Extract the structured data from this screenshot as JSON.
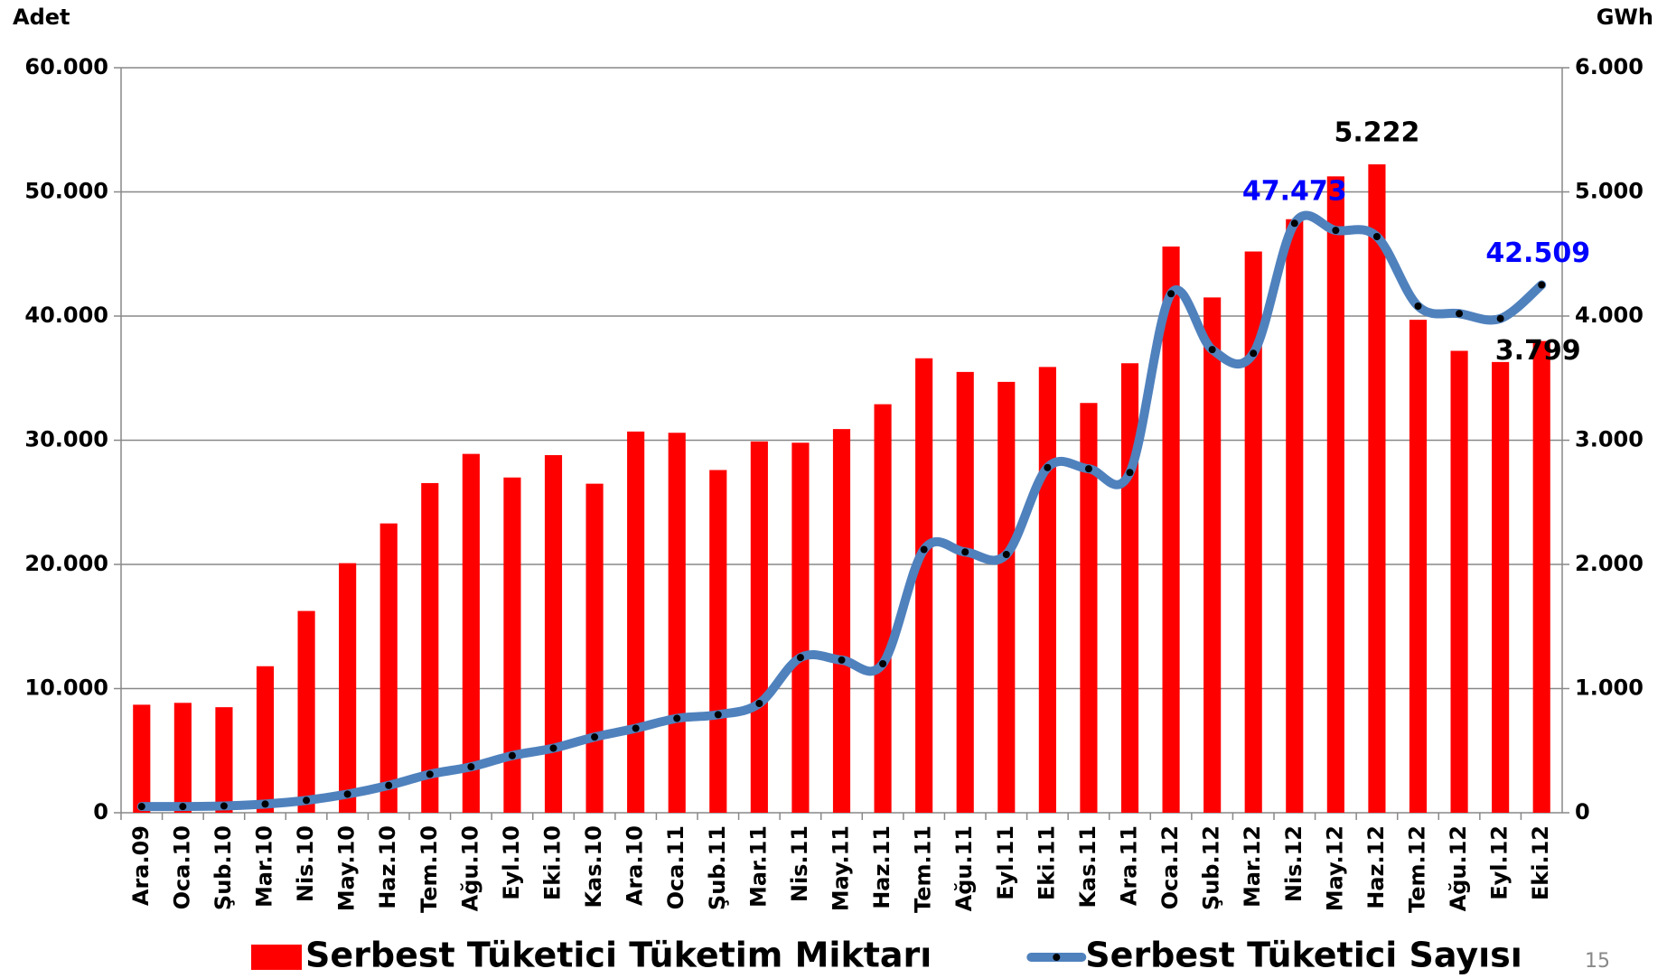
{
  "chart_data": {
    "type": "bar_line",
    "y_label": "Adet",
    "y2_label": "GWh",
    "categories": [
      "Ara.09",
      "Oca.10",
      "Şub.10",
      "Mar.10",
      "Nis.10",
      "May.10",
      "Haz.10",
      "Tem.10",
      "Ağu.10",
      "Eyl.10",
      "Eki.10",
      "Kas.10",
      "Ara.10",
      "Oca.11",
      "Şub.11",
      "Mar.11",
      "Nis.11",
      "May.11",
      "Haz.11",
      "Tem.11",
      "Ağu.11",
      "Eyl.11",
      "Eki.11",
      "Kas.11",
      "Ara.11",
      "Oca.12",
      "Şub.12",
      "Mar.12",
      "Nis.12",
      "May.12",
      "Haz.12",
      "Tem.12",
      "Ağu.12",
      "Eyl.12",
      "Eki.12"
    ],
    "series": [
      {
        "name": "Serbest Tüketici Tüketim Miktarı",
        "type": "bar",
        "axis": "y2",
        "color": "#ff0000",
        "values": [
          870,
          885,
          850,
          1180,
          1625,
          2010,
          2330,
          2655,
          2890,
          2700,
          2880,
          2650,
          3070,
          3060,
          2760,
          2990,
          2980,
          3090,
          3290,
          3660,
          3550,
          3470,
          3590,
          3300,
          3620,
          4560,
          4150,
          4520,
          4780,
          5125,
          5222,
          3970,
          3720,
          3630,
          3799
        ],
        "value_labels": [
          null,
          null,
          null,
          null,
          null,
          null,
          null,
          null,
          null,
          null,
          null,
          null,
          null,
          null,
          null,
          null,
          null,
          null,
          null,
          null,
          null,
          null,
          null,
          null,
          null,
          null,
          null,
          null,
          null,
          null,
          "5.222",
          null,
          null,
          null,
          "3.799"
        ],
        "label_color": "#000000"
      },
      {
        "name": "Serbest Tüketici Sayısı",
        "type": "line",
        "axis": "y",
        "color": "#4f81bd",
        "marker_color": "#000000",
        "values": [
          500,
          500,
          550,
          700,
          1000,
          1500,
          2200,
          3100,
          3700,
          4600,
          5200,
          6100,
          6800,
          7600,
          7900,
          8800,
          12500,
          12300,
          12000,
          21200,
          21000,
          20800,
          27800,
          27700,
          27400,
          41800,
          37300,
          37000,
          47473,
          46900,
          46400,
          40800,
          40200,
          39800,
          42509
        ],
        "value_labels": [
          null,
          null,
          null,
          null,
          null,
          null,
          null,
          null,
          null,
          null,
          null,
          null,
          null,
          null,
          null,
          null,
          null,
          null,
          null,
          null,
          null,
          null,
          null,
          null,
          null,
          null,
          null,
          null,
          "47.473",
          null,
          null,
          null,
          null,
          null,
          "42.509"
        ],
        "label_color": "#0000ff"
      }
    ],
    "ylim": [
      0,
      60000
    ],
    "yticks": [
      0,
      {
        "value": 10000,
        "label": "10.000"
      },
      {
        "value": 20000,
        "label": "20.000"
      },
      {
        "value": 30000,
        "label": "30.000"
      },
      {
        "value": 40000,
        "label": "40.000"
      },
      {
        "value": 50000,
        "label": "50.000"
      },
      {
        "value": 60000,
        "label": "60.000"
      }
    ],
    "y2lim": [
      0,
      6000
    ],
    "y2ticks": [
      0,
      {
        "value": 1000,
        "label": "1.000"
      },
      {
        "value": 2000,
        "label": "2.000"
      },
      {
        "value": 3000,
        "label": "3.000"
      },
      {
        "value": 4000,
        "label": "4.000"
      },
      {
        "value": 5000,
        "label": "5.000"
      },
      {
        "value": 6000,
        "label": "6.000"
      }
    ],
    "grid": true,
    "legend": "bottom"
  },
  "page_number": "15"
}
